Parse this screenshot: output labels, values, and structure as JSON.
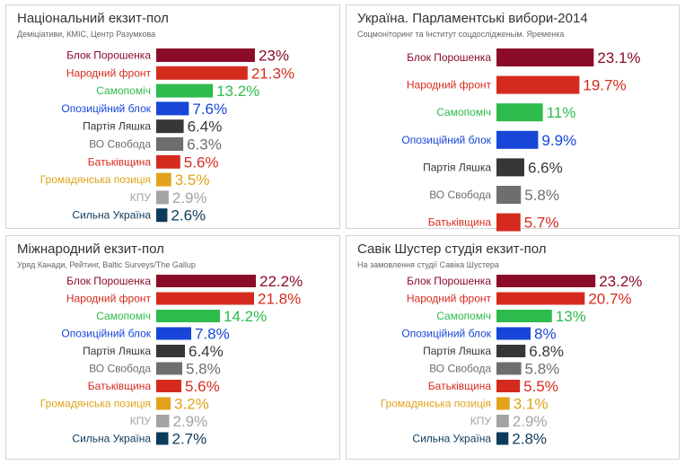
{
  "colors": {
    "Блок Порошенка": "#8b0c28",
    "Народний фронт": "#d52b1e",
    "Самопоміч": "#2dbb4c",
    "Опозиційний блок": "#1746d8",
    "Партія Ляшка": "#373737",
    "ВО Свобода": "#6e6e6e",
    "Батьківщина": "#d52b1e",
    "Громадянська позиція": "#e2a21b",
    "КПУ": "#a3a3a3",
    "Сильна Україна": "#0d3b5c"
  },
  "panels": [
    {
      "title": "Національний екзит-пол",
      "subtitle": "Деміціативи, КМІС, Центр Разумкова",
      "chart_data": {
        "type": "bar",
        "orientation": "horizontal",
        "categories": [
          "Блок Порошенка",
          "Народний фронт",
          "Самопоміч",
          "Опозиційний блок",
          "Партія Ляшка",
          "ВО Свобода",
          "Батьківщина",
          "Громадянська позиція",
          "КПУ",
          "Сильна Україна"
        ],
        "values": [
          23,
          21.3,
          13.2,
          7.6,
          6.4,
          6.3,
          5.6,
          3.5,
          2.9,
          2.6
        ],
        "labels": [
          "23%",
          "21.3%",
          "13.2%",
          "7.6%",
          "6.4%",
          "6.3%",
          "5.6%",
          "3.5%",
          "2.9%",
          "2.6%"
        ]
      }
    },
    {
      "title": "Україна. Парламентські вибори-2014",
      "subtitle": "Соцмоніторинг та Інститут соцдослідженьім. Яременка",
      "chart_data": {
        "type": "bar",
        "orientation": "horizontal",
        "categories": [
          "Блок Порошенка",
          "Народний фронт",
          "Самопоміч",
          "Опозиційний блок",
          "Партія Ляшка",
          "ВО Свобода",
          "Батьківщина"
        ],
        "values": [
          23.1,
          19.7,
          11,
          9.9,
          6.6,
          5.8,
          5.7
        ],
        "labels": [
          "23.1%",
          "19.7%",
          "11%",
          "9.9%",
          "6.6%",
          "5.8%",
          "5.7%"
        ]
      }
    },
    {
      "title": "Міжнародний екзит-пол",
      "subtitle": "Уряд Канади, Рейтинг, Baltic Surveys/The Gallup",
      "chart_data": {
        "type": "bar",
        "orientation": "horizontal",
        "categories": [
          "Блок Порошенка",
          "Народний фронт",
          "Самопоміч",
          "Опозиційний блок",
          "Партія Ляшка",
          "ВО Свобода",
          "Батьківщина",
          "Громадянська позиція",
          "КПУ",
          "Сильна Україна"
        ],
        "values": [
          22.2,
          21.8,
          14.2,
          7.8,
          6.4,
          5.8,
          5.6,
          3.2,
          2.9,
          2.7
        ],
        "labels": [
          "22.2%",
          "21.8%",
          "14.2%",
          "7.8%",
          "6.4%",
          "5.8%",
          "5.6%",
          "3.2%",
          "2.9%",
          "2.7%"
        ]
      }
    },
    {
      "title": "Савік Шустер студія екзит-пол",
      "subtitle": "На замовлення студії Савіка Шустера",
      "chart_data": {
        "type": "bar",
        "orientation": "horizontal",
        "categories": [
          "Блок Порошенка",
          "Народний фронт",
          "Самопоміч",
          "Опозиційний блок",
          "Партія Ляшка",
          "ВО Свобода",
          "Батьківщина",
          "Громадянська позиція",
          "КПУ",
          "Сильна Україна"
        ],
        "values": [
          23.2,
          20.7,
          13,
          8,
          6.8,
          5.8,
          5.5,
          3.1,
          2.9,
          2.8
        ],
        "labels": [
          "23.2%",
          "20.7%",
          "13%",
          "8%",
          "6.8%",
          "5.8%",
          "5.5%",
          "3.1%",
          "2.9%",
          "2.8%"
        ]
      }
    }
  ]
}
